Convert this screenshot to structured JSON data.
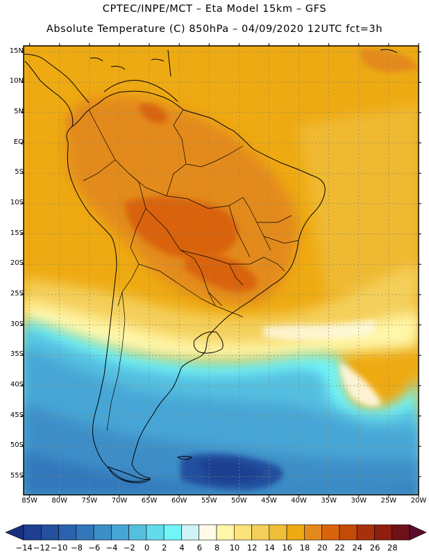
{
  "header": {
    "line1": "CPTEC/INPE/MCT –  Eta Model 15km – GFS",
    "line2": "Absolute Temperature (C) 850hPa – 04/09/2020 12UTC fct=3h"
  },
  "map": {
    "lat_labels": [
      "15N",
      "10N",
      "5N",
      "EQ",
      "5S",
      "10S",
      "15S",
      "20S",
      "25S",
      "30S",
      "35S",
      "40S",
      "45S",
      "50S",
      "55S"
    ],
    "lon_labels": [
      "85W",
      "80W",
      "75W",
      "70W",
      "65W",
      "60W",
      "55W",
      "50W",
      "45W",
      "40W",
      "35W",
      "30W",
      "25W",
      "20W"
    ],
    "lat_range": [
      16,
      -58
    ],
    "lon_range": [
      -86,
      -20
    ],
    "graticule_color": "#8a8a6a"
  },
  "colorbar": {
    "tick_labels": [
      "-14",
      "-12",
      "-10",
      "-8",
      "-6",
      "-4",
      "-2",
      "0",
      "2",
      "4",
      "6",
      "8",
      "10",
      "12",
      "14",
      "16",
      "18",
      "20",
      "22",
      "24",
      "26",
      "28"
    ],
    "colors": [
      "#1e3f92",
      "#24509e",
      "#2a62ad",
      "#3377bb",
      "#3c8ec8",
      "#47a6d6",
      "#55bfe0",
      "#62dcec",
      "#72f5f7",
      "#d0f4f5",
      "#fffbe6",
      "#fff6a8",
      "#fbe27a",
      "#f4cf5a",
      "#f0bd3a",
      "#eeaa12",
      "#e38a1e",
      "#d9640c",
      "#c44a08",
      "#a8300a",
      "#8f1e10",
      "#701018"
    ],
    "under_color": "#1a2f80",
    "over_color": "#5a0c2a"
  }
}
